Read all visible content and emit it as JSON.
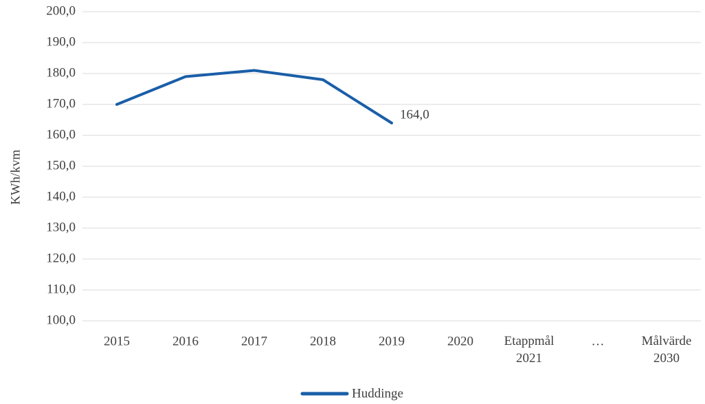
{
  "chart_data": {
    "type": "line",
    "y_label": "KWh/kvm",
    "categories": [
      "2015",
      "2016",
      "2017",
      "2018",
      "2019",
      "2020",
      "Etappmål\n2021",
      "…",
      "Målvärde\n2030"
    ],
    "series": [
      {
        "name": "Huddinge",
        "color": "#1a5ea8",
        "values": [
          170,
          179,
          181,
          178,
          164,
          null,
          null,
          null,
          null
        ],
        "value_labels": [
          null,
          null,
          null,
          null,
          "164,0",
          null,
          null,
          null,
          null
        ]
      }
    ],
    "ylim": [
      100,
      200
    ],
    "yticks": [
      {
        "value": 100,
        "label": "100,0"
      },
      {
        "value": 110,
        "label": "110,0"
      },
      {
        "value": 120,
        "label": "120,0"
      },
      {
        "value": 130,
        "label": "130,0"
      },
      {
        "value": 140,
        "label": "140,0"
      },
      {
        "value": 150,
        "label": "150,0"
      },
      {
        "value": 160,
        "label": "160,0"
      },
      {
        "value": 170,
        "label": "170,0"
      },
      {
        "value": 180,
        "label": "180,0"
      },
      {
        "value": 190,
        "label": "190,0"
      },
      {
        "value": 200,
        "label": "200,0"
      }
    ],
    "grid": true,
    "legend": "bottom"
  }
}
